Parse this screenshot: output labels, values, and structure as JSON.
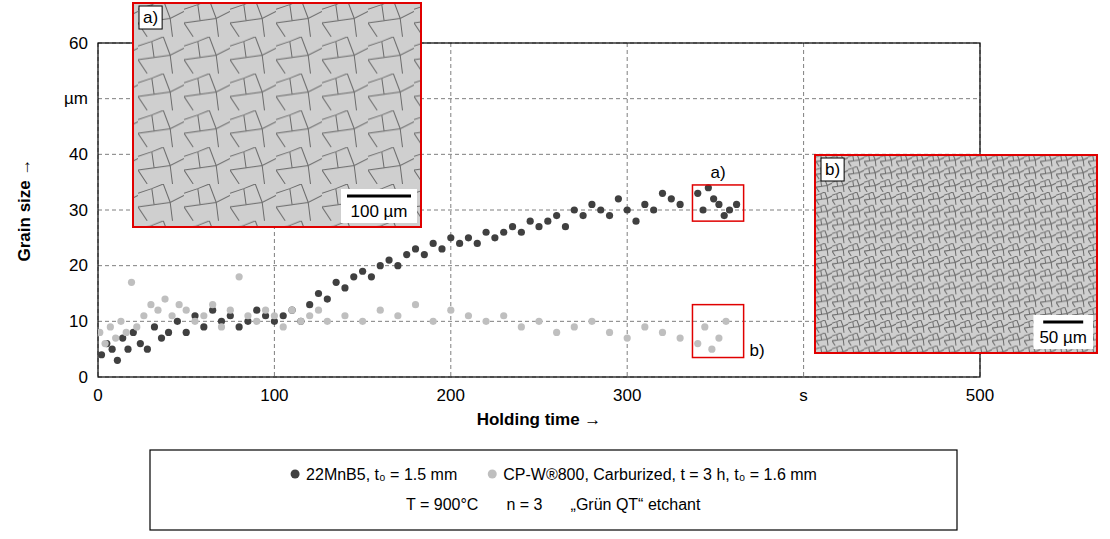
{
  "chart_data": {
    "type": "scatter",
    "x_label": "Holding time →",
    "y_label": "Grain size →",
    "xlim": [
      0,
      500
    ],
    "ylim": [
      0,
      60
    ],
    "xticks": [
      0,
      100,
      200,
      300,
      {
        "value": 400,
        "label": "s"
      },
      500
    ],
    "yticks": [
      0,
      10,
      20,
      30,
      40,
      {
        "value": 50,
        "label": "µm"
      },
      60
    ],
    "grid": true,
    "legend": "bottom",
    "marker": "circle",
    "series": [
      {
        "name": "22MnB5, t₀ = 1.5 mm",
        "color": "#404040",
        "x": [
          2,
          5,
          8,
          11,
          14,
          17,
          20,
          24,
          28,
          32,
          36,
          40,
          45,
          50,
          55,
          60,
          65,
          70,
          75,
          80,
          85,
          90,
          95,
          100,
          105,
          110,
          115,
          120,
          125,
          130,
          135,
          140,
          145,
          150,
          155,
          160,
          165,
          170,
          175,
          180,
          185,
          190,
          195,
          200,
          205,
          210,
          215,
          220,
          225,
          230,
          235,
          240,
          245,
          250,
          255,
          260,
          265,
          270,
          275,
          280,
          285,
          290,
          295,
          300,
          305,
          310,
          315,
          320,
          325,
          330,
          340,
          343,
          346,
          349,
          352,
          355,
          358,
          362
        ],
        "values": [
          4,
          6,
          5,
          3,
          7,
          5,
          8,
          6,
          5,
          9,
          7,
          8,
          10,
          8,
          11,
          9,
          12,
          10,
          11,
          9,
          10,
          12,
          11,
          10,
          11,
          12,
          10,
          13,
          15,
          14,
          17,
          16,
          18,
          19,
          18,
          20,
          21,
          20,
          22,
          23,
          22,
          24,
          23,
          25,
          24,
          25,
          24,
          26,
          25,
          26,
          27,
          26,
          28,
          27,
          28,
          29,
          27,
          30,
          29,
          31,
          30,
          29,
          32,
          30,
          28,
          31,
          30,
          33,
          32,
          31,
          33,
          30,
          34,
          32,
          31,
          29,
          30,
          31
        ]
      },
      {
        "name": "CP-W®800, Carburized, t = 3 h, t₀ = 1.6 mm",
        "color": "#bfbfbf",
        "x": [
          1,
          4,
          7,
          10,
          13,
          16,
          19,
          22,
          26,
          30,
          34,
          38,
          42,
          46,
          50,
          55,
          60,
          65,
          70,
          75,
          80,
          85,
          90,
          95,
          100,
          105,
          110,
          115,
          120,
          125,
          130,
          140,
          150,
          160,
          170,
          180,
          190,
          200,
          210,
          220,
          230,
          240,
          250,
          260,
          270,
          280,
          290,
          300,
          310,
          320,
          330,
          340,
          344,
          348,
          352,
          356
        ],
        "values": [
          8,
          6,
          9,
          7,
          10,
          8,
          17,
          9,
          11,
          13,
          12,
          14,
          11,
          13,
          12,
          10,
          11,
          13,
          9,
          12,
          18,
          11,
          10,
          12,
          11,
          9,
          12,
          10,
          11,
          12,
          10,
          11,
          10,
          12,
          11,
          13,
          10,
          12,
          11,
          10,
          11,
          9,
          10,
          8,
          9,
          10,
          8,
          7,
          9,
          8,
          7,
          6,
          9,
          5,
          7,
          10
        ]
      }
    ],
    "annotations": [
      {
        "text": "a)",
        "x": [
          337,
          366
        ],
        "y": [
          28,
          34.5
        ]
      },
      {
        "text": "b)",
        "x": [
          337,
          366
        ],
        "y": [
          3.5,
          13
        ]
      }
    ],
    "insets": [
      {
        "label": "a)",
        "scale_bar": "100 µm"
      },
      {
        "label": "b)",
        "scale_bar": "50 µm"
      }
    ],
    "legend_notes": [
      "T = 900°C",
      "n = 3",
      "„Grün QT“ etchant"
    ]
  }
}
